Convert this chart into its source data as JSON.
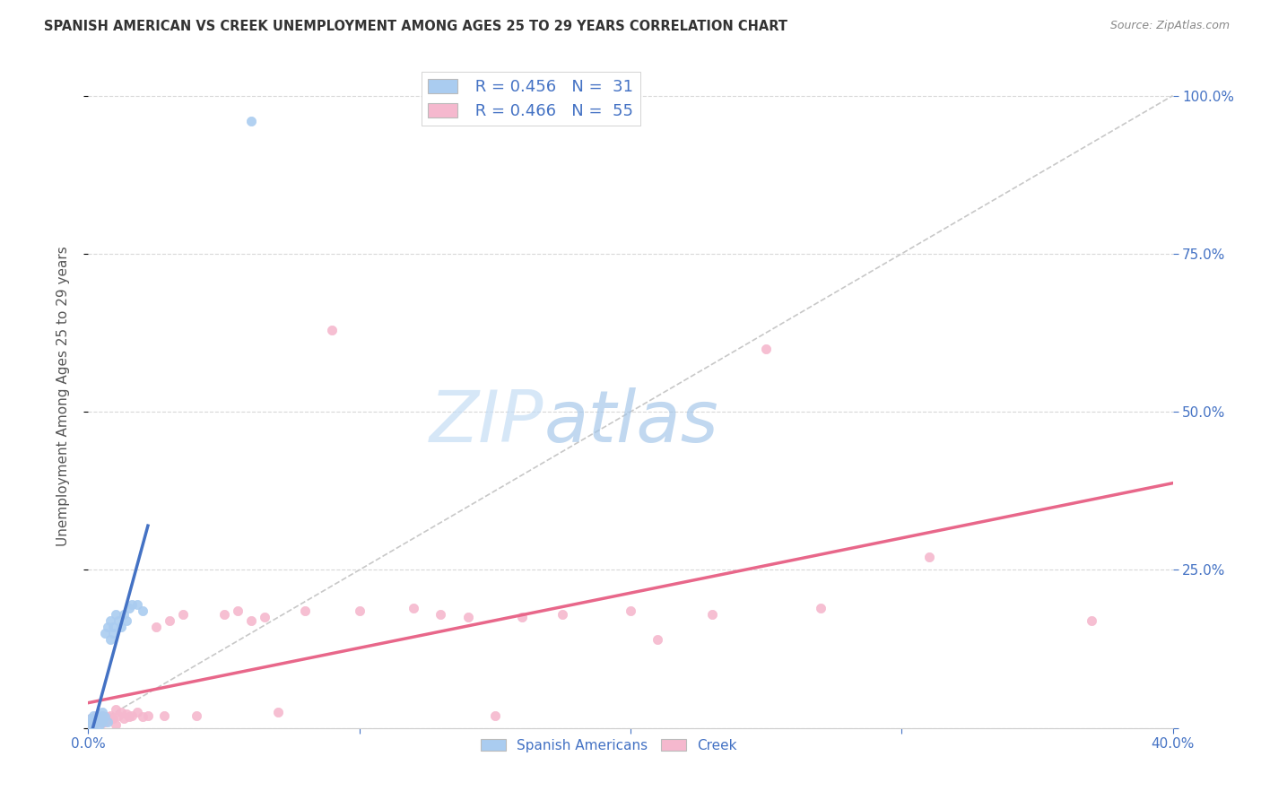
{
  "title": "SPANISH AMERICAN VS CREEK UNEMPLOYMENT AMONG AGES 25 TO 29 YEARS CORRELATION CHART",
  "source": "Source: ZipAtlas.com",
  "ylabel": "Unemployment Among Ages 25 to 29 years",
  "xlim": [
    0.0,
    0.4
  ],
  "ylim": [
    0.0,
    1.05
  ],
  "xticks": [
    0.0,
    0.1,
    0.2,
    0.3,
    0.4
  ],
  "yticks": [
    0.0,
    0.25,
    0.5,
    0.75,
    1.0
  ],
  "xtick_labels": [
    "0.0%",
    "",
    "",
    "",
    "40.0%"
  ],
  "ytick_labels_right": [
    "",
    "25.0%",
    "50.0%",
    "75.0%",
    "100.0%"
  ],
  "legend_blue_r": "R = 0.456",
  "legend_blue_n": "N =  31",
  "legend_pink_r": "R = 0.466",
  "legend_pink_n": "N =  55",
  "legend_labels": [
    "Spanish Americans",
    "Creek"
  ],
  "blue_color": "#aaccf0",
  "pink_color": "#f5b8ce",
  "blue_line_color": "#4472c4",
  "pink_line_color": "#e8678a",
  "diagonal_color": "#c8c8c8",
  "watermark_zip": "ZIP",
  "watermark_atlas": "atlas",
  "blue_scatter_x": [
    0.0,
    0.001,
    0.001,
    0.002,
    0.002,
    0.003,
    0.003,
    0.004,
    0.004,
    0.004,
    0.005,
    0.005,
    0.005,
    0.006,
    0.006,
    0.007,
    0.007,
    0.008,
    0.008,
    0.009,
    0.009,
    0.01,
    0.011,
    0.012,
    0.013,
    0.014,
    0.015,
    0.016,
    0.018,
    0.02,
    0.06
  ],
  "blue_scatter_y": [
    0.005,
    0.01,
    0.015,
    0.005,
    0.02,
    0.01,
    0.015,
    0.005,
    0.015,
    0.018,
    0.01,
    0.02,
    0.025,
    0.018,
    0.15,
    0.01,
    0.16,
    0.14,
    0.17,
    0.15,
    0.16,
    0.18,
    0.17,
    0.16,
    0.18,
    0.17,
    0.19,
    0.195,
    0.195,
    0.185,
    0.96
  ],
  "pink_scatter_x": [
    0.0,
    0.001,
    0.001,
    0.002,
    0.002,
    0.003,
    0.003,
    0.004,
    0.005,
    0.005,
    0.005,
    0.006,
    0.006,
    0.007,
    0.007,
    0.008,
    0.008,
    0.009,
    0.01,
    0.01,
    0.011,
    0.012,
    0.013,
    0.014,
    0.015,
    0.016,
    0.018,
    0.02,
    0.022,
    0.025,
    0.028,
    0.03,
    0.035,
    0.04,
    0.05,
    0.055,
    0.06,
    0.065,
    0.07,
    0.08,
    0.09,
    0.1,
    0.12,
    0.13,
    0.14,
    0.15,
    0.16,
    0.175,
    0.2,
    0.21,
    0.23,
    0.25,
    0.27,
    0.31,
    0.37
  ],
  "pink_scatter_y": [
    0.005,
    0.008,
    0.015,
    0.005,
    0.012,
    0.008,
    0.02,
    0.01,
    0.008,
    0.015,
    0.02,
    0.01,
    0.018,
    0.012,
    0.018,
    0.015,
    0.02,
    0.015,
    0.005,
    0.03,
    0.02,
    0.025,
    0.015,
    0.022,
    0.018,
    0.02,
    0.025,
    0.018,
    0.02,
    0.16,
    0.02,
    0.17,
    0.18,
    0.02,
    0.18,
    0.185,
    0.17,
    0.175,
    0.025,
    0.185,
    0.63,
    0.185,
    0.19,
    0.18,
    0.175,
    0.02,
    0.175,
    0.18,
    0.185,
    0.14,
    0.18,
    0.6,
    0.19,
    0.27,
    0.17
  ],
  "background_color": "#ffffff",
  "grid_color": "#d8d8d8"
}
